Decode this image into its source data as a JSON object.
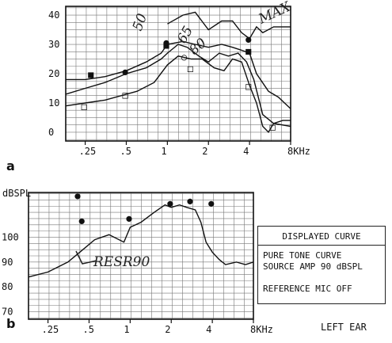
{
  "panel_a": {
    "label": "a",
    "chart_data": {
      "type": "line",
      "x_tick_labels": [
        ".25",
        ".5",
        "1",
        "2",
        "4",
        "8KHz"
      ],
      "x_ticks_khz": [
        0.25,
        0.5,
        1,
        2,
        4,
        8
      ],
      "y_tick_labels": [
        "40",
        "30",
        "20",
        "10",
        "0"
      ],
      "y_ticks": [
        40,
        30,
        20,
        10,
        0
      ],
      "ylim": [
        -3,
        43
      ],
      "x_range_khz": [
        0.18,
        8
      ],
      "series": [
        {
          "x": [
            0.18,
            0.25,
            0.35,
            0.5,
            0.7,
            0.9,
            1.0,
            1.3,
            1.6,
            2.0,
            2.5,
            3.0,
            3.5,
            4.0,
            4.5,
            5.5,
            6.5,
            8
          ],
          "y": [
            18,
            18,
            19,
            21,
            24,
            27,
            30,
            31,
            30,
            29,
            30,
            29,
            28,
            27,
            20,
            14,
            12,
            8
          ]
        },
        {
          "x": [
            0.18,
            0.25,
            0.35,
            0.5,
            0.7,
            0.9,
            1.0,
            1.2,
            1.4,
            1.7,
            2.0,
            2.4,
            2.8,
            3.3,
            3.8,
            4.3,
            5.0,
            6.0,
            8
          ],
          "y": [
            13,
            15,
            17,
            20,
            22,
            25,
            27,
            30,
            29,
            26,
            24,
            27,
            26,
            27,
            24,
            18,
            6,
            3,
            2
          ]
        },
        {
          "x": [
            0.18,
            0.25,
            0.35,
            0.5,
            0.6,
            0.8,
            1.0,
            1.2,
            1.5,
            1.8,
            2.2,
            2.6,
            3.0,
            3.5,
            4.0,
            4.5,
            5.0,
            5.5,
            6.0,
            7.0,
            8
          ],
          "y": [
            9,
            10,
            11,
            13,
            14,
            17,
            23,
            26,
            25,
            25,
            22,
            21,
            25,
            24,
            16,
            10,
            2,
            0,
            3,
            4,
            4
          ]
        },
        {
          "x": [
            1.0,
            1.3,
            1.6,
            2.0,
            2.5,
            3.0,
            3.5,
            4.0,
            4.5,
            5.0,
            6.0,
            8
          ],
          "y": [
            37,
            40,
            41,
            35,
            38,
            38,
            34,
            32,
            36,
            34,
            36,
            36
          ]
        }
      ],
      "markers": [
        {
          "symbol": "■",
          "x": 0.28,
          "y": 20
        },
        {
          "symbol": "●",
          "x": 0.5,
          "y": 21
        },
        {
          "symbol": "■",
          "x": 1.0,
          "y": 30
        },
        {
          "symbol": "●",
          "x": 1.0,
          "y": 31
        },
        {
          "symbol": "○",
          "x": 1.35,
          "y": 26
        },
        {
          "symbol": "■",
          "x": 4.0,
          "y": 28
        },
        {
          "symbol": "●",
          "x": 4.0,
          "y": 32
        },
        {
          "symbol": "□",
          "x": 0.5,
          "y": 13
        },
        {
          "symbol": "□",
          "x": 1.5,
          "y": 22
        },
        {
          "symbol": "□",
          "x": 4.0,
          "y": 16
        },
        {
          "symbol": "□",
          "x": 6.0,
          "y": 2
        },
        {
          "symbol": "□",
          "x": 0.25,
          "y": 9
        }
      ],
      "handwriting": [
        "50",
        "65",
        "80",
        "MAX"
      ]
    }
  },
  "panel_b": {
    "label": "b",
    "chart_data": {
      "type": "line",
      "ylabel": "dBSPL",
      "x_tick_labels": [
        ".25",
        ".5",
        "1",
        "2",
        "4",
        "8KHz"
      ],
      "x_ticks_khz": [
        0.25,
        0.5,
        1,
        2,
        4,
        8
      ],
      "y_tick_labels": [
        "100",
        "90",
        "80",
        "70"
      ],
      "y_ticks": [
        100,
        90,
        80,
        70
      ],
      "ylim": [
        67,
        118
      ],
      "x_range_khz": [
        0.18,
        8
      ],
      "series": [
        {
          "x": [
            0.18,
            0.25,
            0.35,
            0.45,
            0.55,
            0.7,
            0.9,
            1.0,
            1.2,
            1.5,
            1.8,
            2.0,
            2.3,
            2.6,
            3.0,
            3.3,
            3.6,
            4.0,
            4.5,
            5.0,
            6.0,
            7.0,
            8
          ],
          "y": [
            84,
            86,
            90,
            95,
            99,
            101,
            98,
            104,
            106,
            110,
            113,
            112,
            113,
            112,
            111,
            106,
            98,
            94,
            91,
            89,
            90,
            89,
            90
          ]
        }
      ],
      "markers": [
        {
          "symbol": "●",
          "x": 0.45,
          "y": 107
        },
        {
          "symbol": "●",
          "x": 1.0,
          "y": 108
        },
        {
          "symbol": "●",
          "x": 2.0,
          "y": 114
        },
        {
          "symbol": "●",
          "x": 2.8,
          "y": 115
        },
        {
          "symbol": "●",
          "x": 4.0,
          "y": 114
        },
        {
          "symbol": "●",
          "x": 0.42,
          "y": 117
        }
      ],
      "handwriting": "RESR90"
    },
    "legend": {
      "header": "DISPLAYED CURVE",
      "line1": "PURE TONE CURVE",
      "line2": "SOURCE AMP 90 dBSPL",
      "line3": "REFERENCE MIC OFF"
    },
    "ear": "LEFT EAR"
  }
}
